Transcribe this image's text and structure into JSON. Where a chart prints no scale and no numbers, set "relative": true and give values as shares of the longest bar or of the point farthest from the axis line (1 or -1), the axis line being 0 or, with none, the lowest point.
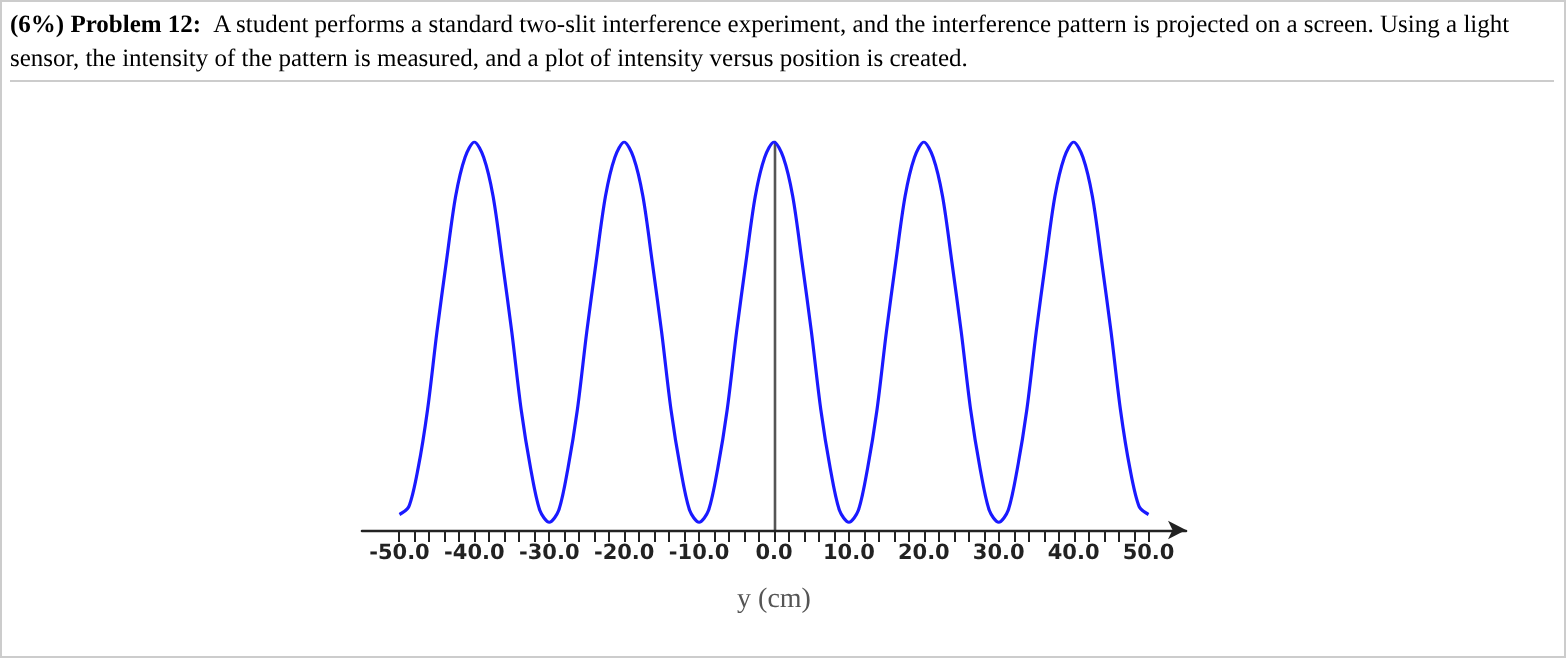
{
  "chart_data": {
    "type": "line",
    "title": "(6%) Problem 12:",
    "subtitle": "A student performs a standard two-slit interference experiment, and the interference pattern is projected on a screen. Using a light sensor, the intensity of the pattern is measured, and a plot of intensity versus position is created.",
    "xlabel": "y (cm)",
    "relative": true,
    "color": "#1a1aff",
    "marker": "none",
    "line_style": "solid",
    "tick_labels": "x",
    "x": [
      -50,
      -48.75,
      -47.5,
      -46.25,
      -45,
      -43.75,
      -42.5,
      -41.25,
      -40,
      -38.75,
      -37.5,
      -36.25,
      -35,
      -33.75,
      -32.5,
      -31.25,
      -30,
      -28.75,
      -27.5,
      -26.25,
      -25,
      -23.75,
      -22.5,
      -21.25,
      -20,
      -18.75,
      -17.5,
      -16.25,
      -15,
      -13.75,
      -12.5,
      -11.25,
      -10,
      -8.75,
      -7.5,
      -6.25,
      -5,
      -3.75,
      -2.5,
      -1.25,
      0,
      1.25,
      2.5,
      3.75,
      5,
      6.25,
      7.5,
      8.75,
      10,
      11.25,
      12.5,
      13.75,
      15,
      16.25,
      17.5,
      18.75,
      20,
      21.25,
      22.5,
      23.75,
      25,
      26.25,
      27.5,
      28.75,
      30,
      31.25,
      32.5,
      33.75,
      35,
      36.25,
      37.5,
      38.75,
      40,
      41.25,
      42.5,
      43.75,
      45,
      46.25,
      47.5,
      48.75,
      50
    ],
    "values": [
      0.04,
      0.06,
      0.16,
      0.31,
      0.51,
      0.69,
      0.86,
      0.96,
      1,
      0.96,
      0.86,
      0.69,
      0.51,
      0.31,
      0.16,
      0.05,
      0.02,
      0.05,
      0.16,
      0.31,
      0.51,
      0.69,
      0.86,
      0.96,
      1,
      0.96,
      0.86,
      0.69,
      0.51,
      0.31,
      0.16,
      0.05,
      0.02,
      0.05,
      0.16,
      0.31,
      0.51,
      0.69,
      0.86,
      0.96,
      1,
      0.96,
      0.86,
      0.69,
      0.51,
      0.31,
      0.16,
      0.05,
      0.02,
      0.05,
      0.16,
      0.31,
      0.51,
      0.69,
      0.86,
      0.96,
      1,
      0.96,
      0.86,
      0.69,
      0.51,
      0.31,
      0.16,
      0.05,
      0.02,
      0.05,
      0.16,
      0.31,
      0.51,
      0.69,
      0.86,
      0.96,
      1,
      0.96,
      0.86,
      0.69,
      0.51,
      0.31,
      0.16,
      0.06,
      0.04
    ],
    "xlim": [
      -55,
      55
    ],
    "xticks": [
      {
        "value": -50,
        "label": "-50.0"
      },
      {
        "value": -48,
        "label": null
      },
      {
        "value": -46,
        "label": null
      },
      {
        "value": -44,
        "label": null
      },
      {
        "value": -42,
        "label": null
      },
      {
        "value": -40,
        "label": "-40.0"
      },
      {
        "value": -38,
        "label": null
      },
      {
        "value": -36,
        "label": null
      },
      {
        "value": -34,
        "label": null
      },
      {
        "value": -32,
        "label": null
      },
      {
        "value": -30,
        "label": "-30.0"
      },
      {
        "value": -28,
        "label": null
      },
      {
        "value": -26,
        "label": null
      },
      {
        "value": -24,
        "label": null
      },
      {
        "value": -22,
        "label": null
      },
      {
        "value": -20,
        "label": "-20.0"
      },
      {
        "value": -18,
        "label": null
      },
      {
        "value": -16,
        "label": null
      },
      {
        "value": -14,
        "label": null
      },
      {
        "value": -12,
        "label": null
      },
      {
        "value": -10,
        "label": "-10.0"
      },
      {
        "value": -8,
        "label": null
      },
      {
        "value": -6,
        "label": null
      },
      {
        "value": -4,
        "label": null
      },
      {
        "value": -2,
        "label": null
      },
      {
        "value": 0,
        "label": "0.0"
      },
      {
        "value": 2,
        "label": null
      },
      {
        "value": 4,
        "label": null
      },
      {
        "value": 6,
        "label": null
      },
      {
        "value": 8,
        "label": null
      },
      {
        "value": 10,
        "label": "10.0"
      },
      {
        "value": 12,
        "label": null
      },
      {
        "value": 14,
        "label": null
      },
      {
        "value": 16,
        "label": null
      },
      {
        "value": 18,
        "label": null
      },
      {
        "value": 20,
        "label": "20.0"
      },
      {
        "value": 22,
        "label": null
      },
      {
        "value": 24,
        "label": null
      },
      {
        "value": 26,
        "label": null
      },
      {
        "value": 28,
        "label": null
      },
      {
        "value": 30,
        "label": "30.0"
      },
      {
        "value": 32,
        "label": null
      },
      {
        "value": 34,
        "label": null
      },
      {
        "value": 36,
        "label": null
      },
      {
        "value": 38,
        "label": null
      },
      {
        "value": 40,
        "label": "40.0"
      },
      {
        "value": 42,
        "label": null
      },
      {
        "value": 44,
        "label": null
      },
      {
        "value": 46,
        "label": null
      },
      {
        "value": 48,
        "label": null
      },
      {
        "value": 50,
        "label": "50.0"
      }
    ]
  }
}
